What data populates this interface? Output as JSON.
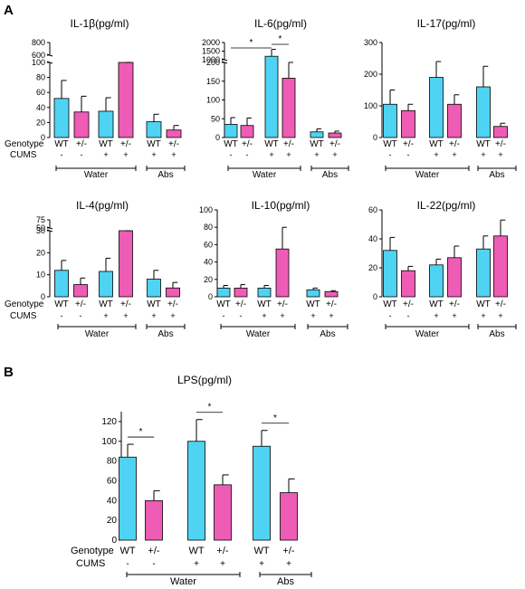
{
  "colors": {
    "wt": "#4FD3F2",
    "het": "#EE5CB5",
    "stroke": "#000000"
  },
  "panel_labels": {
    "a": "A",
    "b": "B"
  },
  "row_labels": {
    "genotype": "Genotype",
    "cums": "CUMS"
  },
  "group_labels": {
    "water": "Water",
    "abs": "Abs"
  },
  "bar_labels": {
    "genotype": [
      "WT",
      "+/-",
      "WT",
      "+/-",
      "WT",
      "+/-"
    ],
    "cums": [
      "-",
      "-",
      "+",
      "+",
      "+",
      "+"
    ]
  },
  "significance": "*",
  "chart_data": [
    {
      "id": "il1b",
      "type": "bar",
      "title": "IL-1β(pg/ml)",
      "categories": [
        "WT Water -",
        "+/- Water -",
        "WT Water +",
        "+/- Water +",
        "WT Abs +",
        "+/- Abs +"
      ],
      "values": [
        52,
        34,
        35,
        100,
        21,
        10
      ],
      "errors": [
        24,
        21,
        18,
        20,
        10,
        6
      ],
      "axis_breaks": [
        {
          "below": 100,
          "above": 600
        }
      ],
      "yticks": [
        0,
        20,
        40,
        60,
        80,
        100,
        600,
        800
      ],
      "ylim": [
        0,
        800
      ],
      "significance": []
    },
    {
      "id": "il6",
      "type": "bar",
      "title": "IL-6(pg/ml)",
      "categories": [
        "WT Water -",
        "+/- Water -",
        "WT Water +",
        "+/- Water +",
        "WT Abs +",
        "+/- Abs +"
      ],
      "values": [
        35,
        32,
        1200,
        158,
        15,
        12
      ],
      "errors": [
        18,
        20,
        400,
        80,
        8,
        5
      ],
      "axis_breaks": [
        {
          "below": 200,
          "above": 1000
        }
      ],
      "yticks": [
        0,
        50,
        100,
        150,
        200,
        1000,
        1500,
        2000
      ],
      "ylim": [
        0,
        2000
      ],
      "significance": [
        {
          "from": 0,
          "to": 2,
          "label": "*"
        },
        {
          "from": 2,
          "to": 3,
          "label": "*"
        }
      ]
    },
    {
      "id": "il17",
      "type": "bar",
      "title": "IL-17(pg/ml)",
      "categories": [
        "WT Water -",
        "+/- Water -",
        "WT Water +",
        "+/- Water +",
        "WT Abs +",
        "+/- Abs +"
      ],
      "values": [
        105,
        85,
        190,
        105,
        160,
        35
      ],
      "errors": [
        45,
        20,
        50,
        30,
        65,
        10
      ],
      "yticks": [
        0,
        100,
        200,
        300
      ],
      "ylim": [
        0,
        300
      ],
      "significance": []
    },
    {
      "id": "il4",
      "type": "bar",
      "title": "IL-4(pg/ml)",
      "categories": [
        "WT Water -",
        "+/- Water -",
        "WT Water +",
        "+/- Water +",
        "WT Abs +",
        "+/- Abs +"
      ],
      "values": [
        12,
        5.5,
        11.5,
        30,
        8,
        4
      ],
      "errors": [
        4.5,
        3,
        6,
        18,
        4,
        2.5
      ],
      "axis_breaks": [
        {
          "below": 30,
          "above": 50
        }
      ],
      "yticks": [
        0,
        10,
        20,
        30,
        50,
        75
      ],
      "ylim": [
        0,
        75
      ],
      "significance": []
    },
    {
      "id": "il10",
      "type": "bar",
      "title": "IL-10(pg/ml)",
      "categories": [
        "WT Water -",
        "+/- Water -",
        "WT Water +",
        "+/- Water +",
        "WT Abs +",
        "+/- Abs +"
      ],
      "values": [
        10,
        10,
        10,
        55,
        8,
        6
      ],
      "errors": [
        3,
        4,
        3,
        25,
        2,
        1
      ],
      "yticks": [
        0,
        20,
        40,
        60,
        80,
        100
      ],
      "ylim": [
        0,
        100
      ],
      "significance": []
    },
    {
      "id": "il22",
      "type": "bar",
      "title": "IL-22(pg/ml)",
      "categories": [
        "WT Water -",
        "+/- Water -",
        "WT Water +",
        "+/- Water +",
        "WT Abs +",
        "+/- Abs +"
      ],
      "values": [
        32,
        18,
        22,
        27,
        33,
        42
      ],
      "errors": [
        9,
        3,
        4,
        8,
        9,
        11
      ],
      "yticks": [
        0,
        20,
        40,
        60
      ],
      "ylim": [
        0,
        60
      ],
      "significance": []
    },
    {
      "id": "lps",
      "type": "bar",
      "title": "LPS(pg/ml)",
      "categories": [
        "WT Water -",
        "+/- Water -",
        "WT Water +",
        "+/- Water +",
        "WT Abs +",
        "+/- Abs +"
      ],
      "values": [
        84,
        40,
        100,
        56,
        95,
        48
      ],
      "errors": [
        13,
        10,
        22,
        10,
        16,
        14
      ],
      "yticks": [
        0,
        20,
        40,
        60,
        80,
        100,
        120
      ],
      "ylim": [
        0,
        130
      ],
      "significance": [
        {
          "from": 0,
          "to": 1,
          "label": "*"
        },
        {
          "from": 2,
          "to": 3,
          "label": "*"
        },
        {
          "from": 4,
          "to": 5,
          "label": "*"
        }
      ]
    }
  ]
}
